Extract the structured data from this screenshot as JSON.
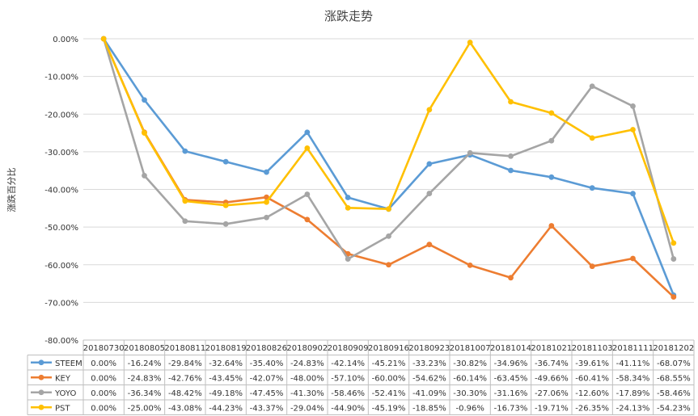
{
  "chart_data": {
    "type": "line",
    "title": "涨跌走势",
    "ylabel": "涨跌百分比",
    "xlabel": "",
    "ylim": [
      -80,
      0
    ],
    "y_ticks": [
      "0.00%",
      "-10.00%",
      "-20.00%",
      "-30.00%",
      "-40.00%",
      "-50.00%",
      "-60.00%",
      "-70.00%",
      "-80.00%"
    ],
    "grid": true,
    "legend": "data-table",
    "categories": [
      "20180730",
      "20180805",
      "20180811",
      "20180819",
      "20180826",
      "20180902",
      "20180909",
      "20180916",
      "20180923",
      "20181007",
      "20181014",
      "20181021",
      "20181103",
      "20181111",
      "20181202"
    ],
    "series": [
      {
        "name": "STEEM",
        "color": "#5B9BD5",
        "values": [
          0.0,
          -16.24,
          -29.84,
          -32.64,
          -35.4,
          -24.83,
          -42.14,
          -45.21,
          -33.23,
          -30.82,
          -34.96,
          -36.74,
          -39.61,
          -41.11,
          -68.07
        ],
        "labels": [
          "0.00%",
          "-16.24%",
          "-29.84%",
          "-32.64%",
          "-35.40%",
          "-24.83%",
          "-42.14%",
          "-45.21%",
          "-33.23%",
          "-30.82%",
          "-34.96%",
          "-36.74%",
          "-39.61%",
          "-41.11%",
          "-68.07%"
        ]
      },
      {
        "name": "KEY",
        "color": "#ED7D31",
        "values": [
          0.0,
          -24.83,
          -42.76,
          -43.45,
          -42.07,
          -48.0,
          -57.1,
          -60.0,
          -54.62,
          -60.14,
          -63.45,
          -49.66,
          -60.41,
          -58.34,
          -68.55
        ],
        "labels": [
          "0.00%",
          "-24.83%",
          "-42.76%",
          "-43.45%",
          "-42.07%",
          "-48.00%",
          "-57.10%",
          "-60.00%",
          "-54.62%",
          "-60.14%",
          "-63.45%",
          "-49.66%",
          "-60.41%",
          "-58.34%",
          "-68.55%"
        ]
      },
      {
        "name": "YOYO",
        "color": "#A5A5A5",
        "values": [
          0.0,
          -36.34,
          -48.42,
          -49.18,
          -47.45,
          -41.3,
          -58.46,
          -52.41,
          -41.09,
          -30.3,
          -31.16,
          -27.06,
          -12.6,
          -17.89,
          -58.46
        ],
        "labels": [
          "0.00%",
          "-36.34%",
          "-48.42%",
          "-49.18%",
          "-47.45%",
          "-41.30%",
          "-58.46%",
          "-52.41%",
          "-41.09%",
          "-30.30%",
          "-31.16%",
          "-27.06%",
          "-12.60%",
          "-17.89%",
          "-58.46%"
        ]
      },
      {
        "name": "PST",
        "color": "#FFC000",
        "values": [
          0.0,
          -25.0,
          -43.08,
          -44.23,
          -43.37,
          -29.04,
          -44.9,
          -45.19,
          -18.85,
          -0.96,
          -16.73,
          -19.71,
          -26.35,
          -24.13,
          -54.23
        ],
        "labels": [
          "0.00%",
          "-25.00%",
          "-43.08%",
          "-44.23%",
          "-43.37%",
          "-29.04%",
          "-44.90%",
          "-45.19%",
          "-18.85%",
          "-0.96%",
          "-16.73%",
          "-19.71%",
          "-26.35%",
          "-24.13%",
          "-54.23%"
        ]
      }
    ]
  }
}
